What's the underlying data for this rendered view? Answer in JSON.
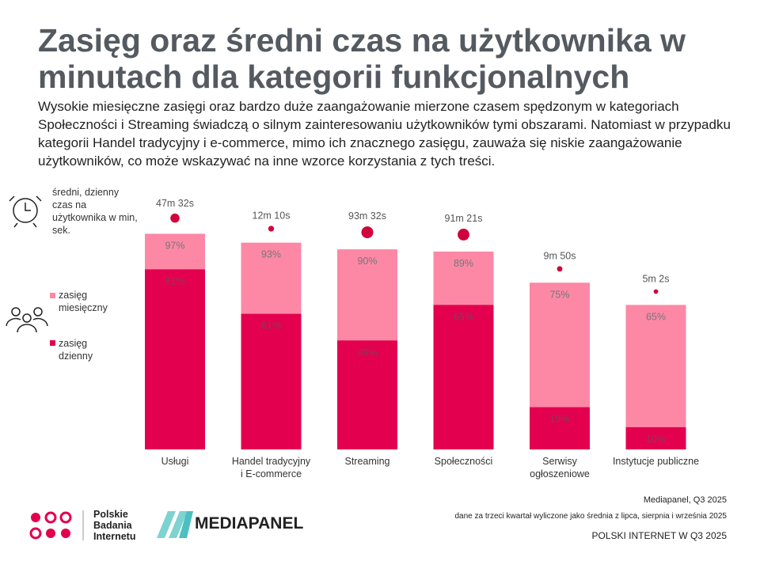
{
  "title": "Zasięg oraz średni czas na użytkownika w minutach dla kategorii funkcjonalnych",
  "subtitle": "Wysokie miesięczne zasięgi oraz bardzo duże zaangażowanie mierzone czasem spędzonym w kategoriach Społeczności i Streaming świadczą o silnym zainteresowaniu użytkowników tymi obszarami. Natomiast w przypadku kategorii Handel tradycyjny i e-commerce, mimo ich znacznego zasięgu, zauważa się niskie zaangażowanie użytkowników, co może wskazywać na inne wzorce korzystania z tych treści.",
  "legend": {
    "time": "średni, dzienny czas na użytkownika w min, sek.",
    "monthly": "zasięg miesięczny",
    "daily": "zasięg dzienny"
  },
  "colors": {
    "monthly": "#fc88a6",
    "daily": "#e3004f",
    "dot": "#d0043c"
  },
  "chart_data": {
    "type": "bar",
    "categories": [
      "Usługi",
      "Handel tradycyjny i E-commerce",
      "Streaming",
      "Społeczności",
      "Serwisy ogłoszeniowe",
      "Instytucje publiczne"
    ],
    "series": [
      {
        "name": "zasięg miesięczny",
        "values": [
          97,
          93,
          90,
          89,
          75,
          65
        ],
        "labels": [
          "97%",
          "93%",
          "90%",
          "89%",
          "75%",
          "65%"
        ]
      },
      {
        "name": "zasięg dzienny",
        "values": [
          81,
          61,
          49,
          65,
          19,
          10
        ],
        "labels": [
          "81%",
          "61%",
          "49%",
          "65%",
          "19%",
          "10%"
        ]
      }
    ],
    "time_labels": [
      "47m 32s",
      "12m 10s",
      "93m 32s",
      "91m 21s",
      "9m 50s",
      "5m 2s"
    ],
    "time_minutes": [
      47.53,
      12.17,
      93.53,
      91.35,
      9.83,
      5.03
    ],
    "ylim": [
      0,
      100
    ]
  },
  "footer": {
    "source": "Mediapanel, Q3 2025",
    "note": "dane za trzeci kwartał wyliczone jako średnia z lipca, sierpnia i września 2025",
    "brand": "POLSKI INTERNET W Q3 2025",
    "pbi": "Polskie Badania Internetu",
    "mediapanel": "MEDIAPANEL"
  }
}
